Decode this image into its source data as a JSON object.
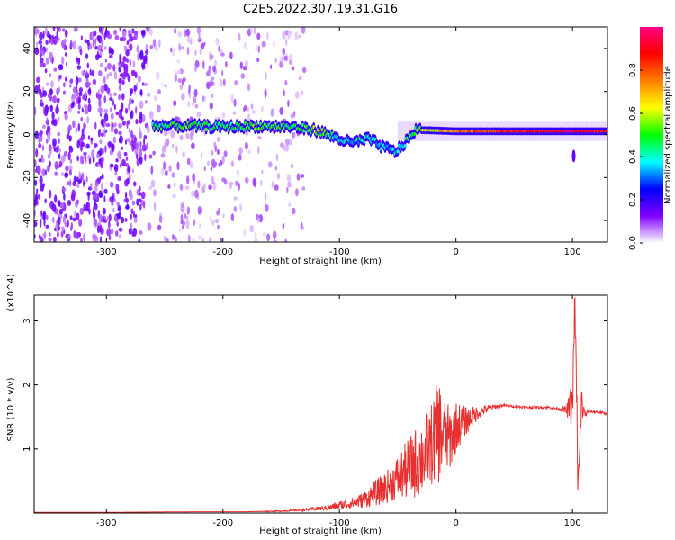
{
  "figure_title": "C2E5.2022.307.19.31.G16",
  "chart_data": [
    {
      "type": "heatmap",
      "title": "C2E5.2022.307.19.31.G16",
      "xlabel": "Height of straight line (km)",
      "ylabel": "Frequency (Hz)",
      "xlim": [
        -362,
        130
      ],
      "ylim": [
        -50,
        50
      ],
      "xticks": [
        -300,
        -200,
        -100,
        0,
        100
      ],
      "xtick_labels": [
        "-300",
        "-200",
        "-100",
        "0",
        "100"
      ],
      "yticks": [
        -40,
        -20,
        0,
        20,
        40
      ],
      "ytick_labels": [
        "-40",
        "-20",
        "0",
        "20",
        "40"
      ],
      "colorbar": {
        "label": "Normalized spectral amplitude",
        "range": [
          0,
          1
        ],
        "ticks": [
          0.0,
          0.2,
          0.4,
          0.6,
          0.8
        ],
        "tick_labels": [
          "0.0",
          "0.2",
          "0.4",
          "0.6",
          "0.8"
        ],
        "colors": [
          "#ffffff",
          "#8000ff",
          "#0000ff",
          "#00ffff",
          "#00ff00",
          "#ffff00",
          "#ff8000",
          "#ff0000",
          "#ff0080"
        ]
      },
      "ridge": [
        {
          "x": -260,
          "freq": 4,
          "amp": 0.45
        },
        {
          "x": -230,
          "freq": 4,
          "amp": 0.5
        },
        {
          "x": -200,
          "freq": 3.5,
          "amp": 0.45
        },
        {
          "x": -170,
          "freq": 4,
          "amp": 0.5
        },
        {
          "x": -140,
          "freq": 3.5,
          "amp": 0.45
        },
        {
          "x": -120,
          "freq": 2,
          "amp": 0.55
        },
        {
          "x": -105,
          "freq": -1,
          "amp": 0.4
        },
        {
          "x": -90,
          "freq": -4,
          "amp": 0.35
        },
        {
          "x": -75,
          "freq": -2,
          "amp": 0.4
        },
        {
          "x": -62,
          "freq": -6,
          "amp": 0.35
        },
        {
          "x": -52,
          "freq": -8,
          "amp": 0.35
        },
        {
          "x": -42,
          "freq": -3,
          "amp": 0.45
        },
        {
          "x": -35,
          "freq": 2,
          "amp": 0.5
        },
        {
          "x": -25,
          "freq": 2,
          "amp": 0.6
        },
        {
          "x": 0,
          "freq": 1.5,
          "amp": 0.75
        },
        {
          "x": 40,
          "freq": 1.5,
          "amp": 0.85
        },
        {
          "x": 80,
          "freq": 1.5,
          "amp": 0.9
        },
        {
          "x": 100,
          "freq": 1.5,
          "amp": 0.95
        },
        {
          "x": 130,
          "freq": 1.5,
          "amp": 0.85
        }
      ],
      "grid": false
    },
    {
      "type": "line",
      "xlabel": "Height of straight line (km)",
      "ylabel": "SNR (10 * v/v)",
      "y_multiplier": "(x10^4)",
      "xlim": [
        -362,
        130
      ],
      "ylim": [
        0,
        3.4
      ],
      "xticks": [
        -300,
        -200,
        -100,
        0,
        100
      ],
      "xtick_labels": [
        "-300",
        "-200",
        "-100",
        "0",
        "100"
      ],
      "yticks": [
        1,
        2,
        3
      ],
      "ytick_labels": [
        "1",
        "2",
        "3"
      ],
      "line_color": "#e83030",
      "series": [
        {
          "x": [
            -362,
            -330,
            -300,
            -260,
            -220,
            -180,
            -150,
            -130,
            -110,
            -100,
            -90,
            -80,
            -70,
            -60,
            -50,
            -40,
            -30,
            -20,
            -15,
            -10,
            -5,
            0,
            10,
            20,
            30,
            40,
            60,
            80,
            90,
            95,
            100,
            102,
            105,
            108,
            110,
            115,
            120,
            130
          ],
          "y": [
            0.01,
            0.01,
            0.01,
            0.015,
            0.02,
            0.02,
            0.03,
            0.05,
            0.08,
            0.12,
            0.15,
            0.2,
            0.3,
            0.4,
            0.55,
            0.7,
            0.85,
            1.1,
            1.3,
            1.2,
            1.15,
            1.35,
            1.45,
            1.58,
            1.65,
            1.68,
            1.65,
            1.65,
            1.62,
            1.6,
            1.7,
            3.35,
            0.3,
            1.75,
            1.55,
            1.58,
            1.58,
            1.55
          ],
          "noise_amp": [
            0,
            0,
            0,
            0,
            0,
            0,
            0.01,
            0.02,
            0.04,
            0.07,
            0.08,
            0.12,
            0.2,
            0.25,
            0.35,
            0.5,
            0.6,
            0.65,
            0.85,
            0.6,
            0.5,
            0.4,
            0.2,
            0.1,
            0.04,
            0.02,
            0.02,
            0.02,
            0.03,
            0.08,
            0.4,
            0.2,
            0.6,
            0.35,
            0.1,
            0.02,
            0.02,
            0.02
          ]
        }
      ]
    }
  ]
}
